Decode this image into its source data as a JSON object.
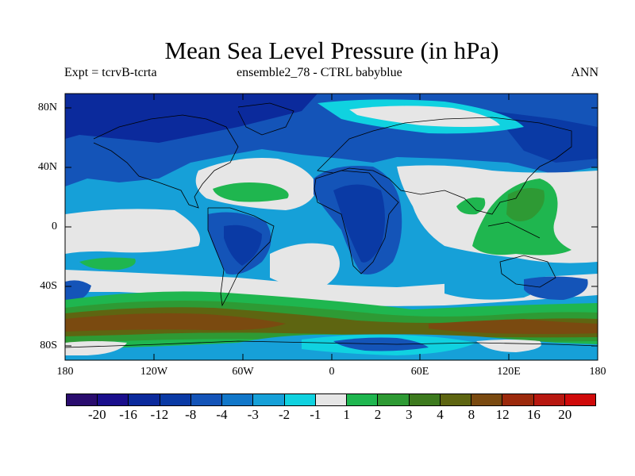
{
  "title": "Mean Sea Level Pressure (in hPa)",
  "subtitle_left": "Expt = tcrvB-tcrta",
  "subtitle_center": "ensemble2_78 - CTRL babyblue",
  "subtitle_right": "ANN",
  "lat_labels": [
    "80N",
    "40N",
    "0",
    "40S",
    "80S"
  ],
  "lon_labels": [
    "180",
    "120W",
    "60W",
    "0",
    "60E",
    "120E",
    "180"
  ],
  "colorbar": {
    "labels": [
      "-20",
      "-16",
      "-12",
      "-8",
      "-4",
      "-3",
      "-2",
      "-1",
      "1",
      "2",
      "3",
      "4",
      "8",
      "12",
      "16",
      "20"
    ],
    "colors": [
      "#2a0c6e",
      "#1a0e8c",
      "#0b2a9c",
      "#0a3aa5",
      "#1454b8",
      "#1177c9",
      "#16a0d8",
      "#10d2e0",
      "#e6e6e6",
      "#1fb64f",
      "#2e9a34",
      "#3d7a1e",
      "#5e6511",
      "#7a4a10",
      "#9c2a0c",
      "#b81810",
      "#d00a0a"
    ]
  }
}
